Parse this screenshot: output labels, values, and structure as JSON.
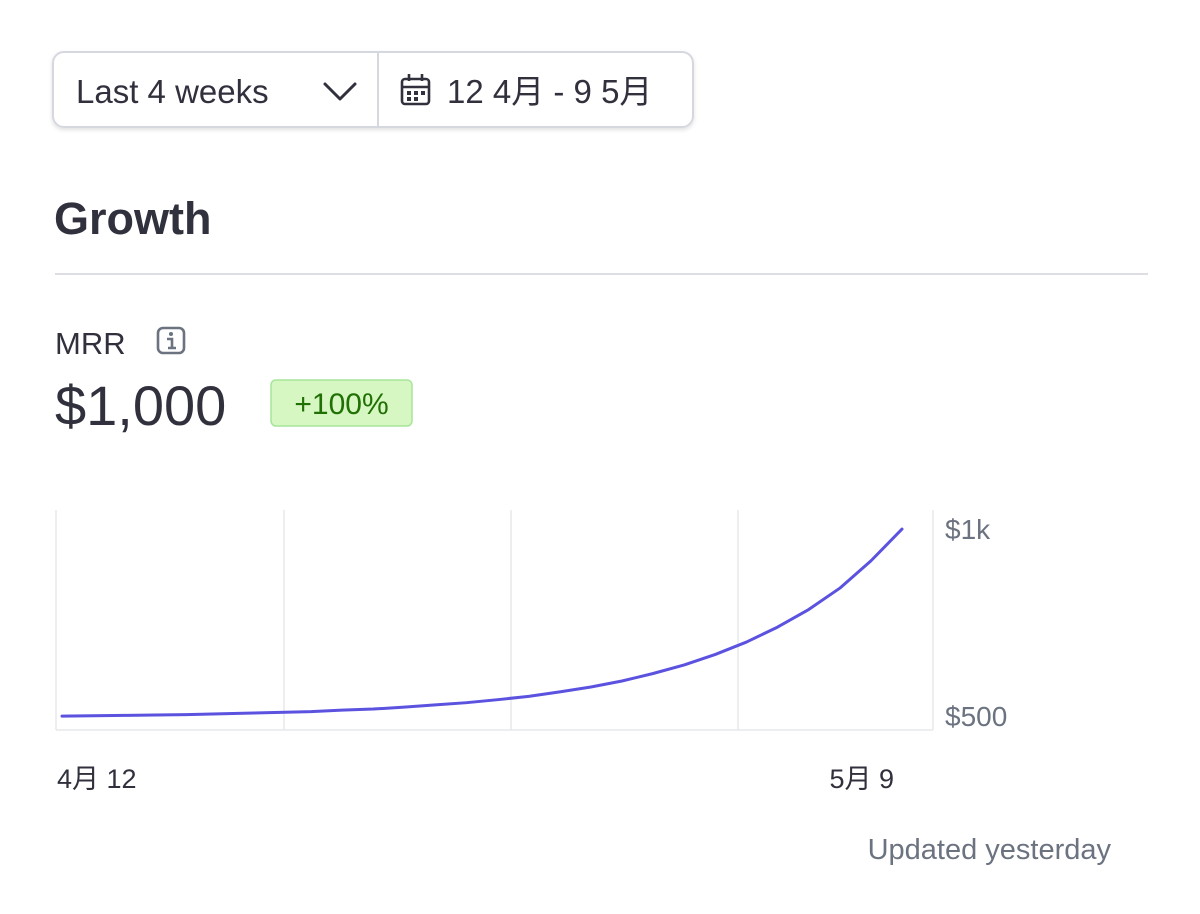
{
  "controls": {
    "range": "Last 4 weeks",
    "dates": "12 4月 - 9 5月"
  },
  "section": {
    "title": "Growth"
  },
  "metric": {
    "label": "MRR",
    "value": "$1,000",
    "change": "+100%"
  },
  "chart_data": {
    "type": "line",
    "categories": [
      "4月 12",
      null,
      null,
      null,
      null,
      null,
      null,
      null,
      null,
      null,
      null,
      null,
      null,
      null,
      null,
      null,
      null,
      null,
      null,
      null,
      null,
      null,
      null,
      null,
      null,
      null,
      null,
      "5月 9"
    ],
    "series": [
      {
        "color": "#5b52e0",
        "values": [
          500,
          501,
          502,
          503,
          504,
          506,
          508,
          510,
          512,
          516,
          519,
          524,
          530,
          536,
          544,
          553,
          565,
          578,
          594,
          614,
          637,
          665,
          698,
          738,
          785,
          842,
          915,
          1000
        ]
      }
    ],
    "ylim": [
      463,
      1051
    ],
    "yticks": [
      {
        "value": 1000,
        "label": "$1k"
      },
      {
        "value": 500,
        "label": "$500"
      }
    ]
  },
  "footer": {
    "updated": "Updated yesterday"
  }
}
